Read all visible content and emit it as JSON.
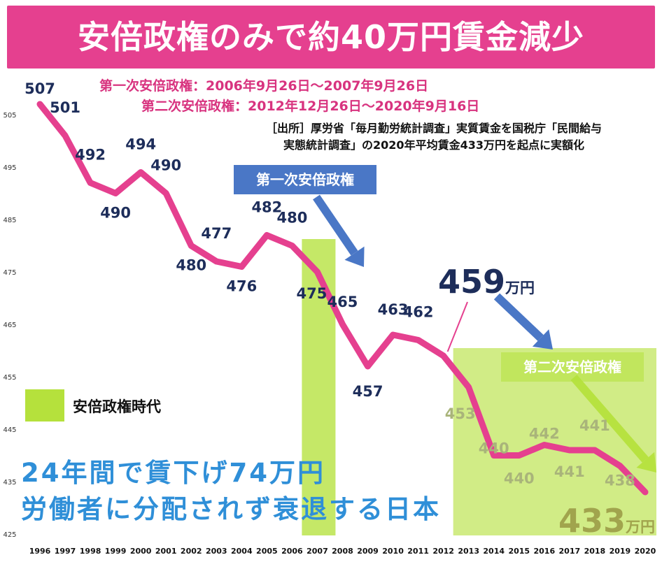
{
  "banner": {
    "title": "安倍政権のみで約40万円賃金減少",
    "color": "#e5408f"
  },
  "periods": {
    "first": "第一次安倍政権：2006年9月26日～2007年9月26日",
    "second": "第二次安倍政権：2012年12月26日～2020年9月16日"
  },
  "source": {
    "line1": "［出所］厚労省「毎月勤労統計調査」実質賃金を国税庁「民間給与",
    "line2": "実態統計調査」の2020年平均賃金433万円を起点に実額化"
  },
  "era_labels": {
    "first": "第一次安倍政権",
    "second": "第二次安倍政権"
  },
  "legend": {
    "label": "安倍政権時代",
    "color": "#b5e13c"
  },
  "messages": {
    "line1": "24年間で賃下げ74万円",
    "line2": "労働者に分配されず衰退する日本"
  },
  "highlights": {
    "v459": {
      "value": "459",
      "unit": "万円"
    },
    "v433": {
      "value": "433",
      "unit": "万円"
    }
  },
  "colors": {
    "line": "#e5408f",
    "label": "#1d2d5a",
    "shade": "#b5e13c",
    "arrow": "#4a77c6",
    "message": "#2f8fd8"
  },
  "chart_data": {
    "type": "line",
    "title": "",
    "xlabel": "",
    "ylabel": "",
    "ylim": [
      425,
      510
    ],
    "yticks": [
      425,
      435,
      445,
      455,
      465,
      475,
      485,
      495,
      505
    ],
    "categories": [
      "1996",
      "1997",
      "1998",
      "1999",
      "2000",
      "2001",
      "2002",
      "2003",
      "2004",
      "2005",
      "2006",
      "2007",
      "2008",
      "2009",
      "2010",
      "2011",
      "2012",
      "2013",
      "2014",
      "2015",
      "2016",
      "2017",
      "2018",
      "2019",
      "2020"
    ],
    "series": [
      {
        "values": [
          507,
          501,
          492,
          490,
          494,
          490,
          480,
          477,
          476,
          482,
          480,
          475,
          465,
          457,
          463,
          462,
          459,
          453,
          440,
          440,
          442,
          441,
          441,
          438,
          433
        ]
      }
    ],
    "data_labels": [
      "507",
      "501",
      "492",
      "490",
      "494",
      "490",
      "480",
      "477",
      "476",
      "482",
      "480",
      "475",
      "465",
      "457",
      "463",
      "462",
      "",
      "453",
      "440",
      "440",
      "442",
      "441",
      "441",
      "438",
      ""
    ],
    "shaded_periods": [
      {
        "name": "第一次安倍政権",
        "from": "2006",
        "to": "2007"
      },
      {
        "name": "第二次安倍政権",
        "from": "2012",
        "to": "2020"
      }
    ],
    "grid": false,
    "legend": "bottom-left"
  }
}
